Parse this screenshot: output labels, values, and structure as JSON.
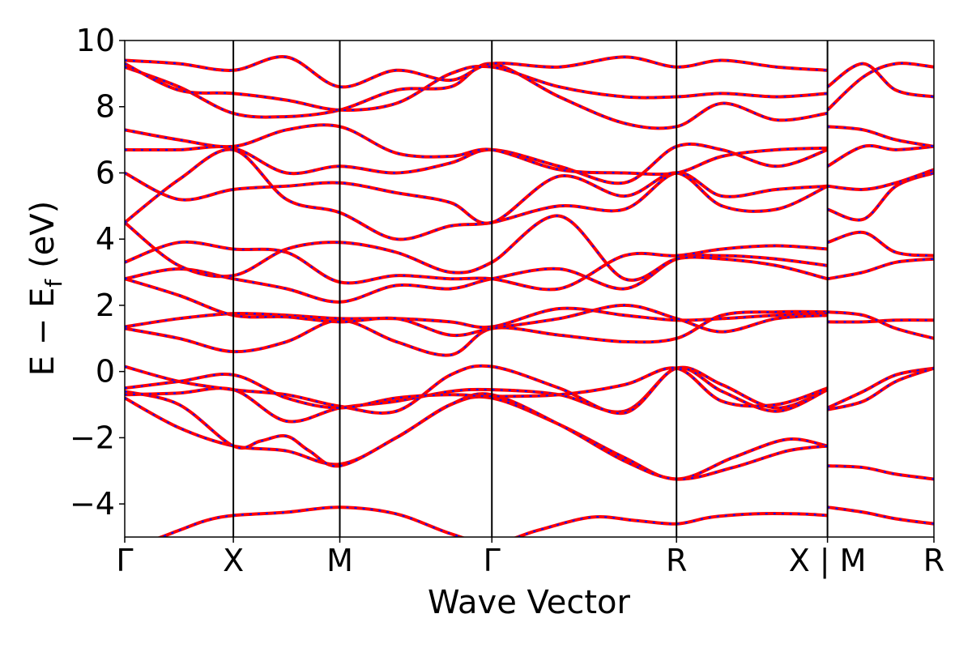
{
  "chart_data": {
    "type": "line",
    "title": "",
    "xlabel": "Wave Vector",
    "ylabel_main": "E − E",
    "ylabel_sub": "f",
    "ylabel_unit": "(eV)",
    "ylim": [
      -5,
      10
    ],
    "yticks": [
      -4,
      -2,
      0,
      2,
      4,
      6,
      8,
      10
    ],
    "ytick_labels": [
      "−4",
      "−2",
      "0",
      "2",
      "4",
      "6",
      "8",
      "10"
    ],
    "x_range": [
      0,
      7.45
    ],
    "kpoints": [
      {
        "label": "Γ",
        "x": 0.0
      },
      {
        "label": "X",
        "x": 1.0
      },
      {
        "label": "M",
        "x": 1.98
      },
      {
        "label": "Γ",
        "x": 3.38
      },
      {
        "label": "R",
        "x": 5.08
      },
      {
        "label": "X | M",
        "x": 6.47
      },
      {
        "label": "R",
        "x": 7.45
      }
    ],
    "grid": false,
    "legend": "none",
    "colors": {
      "band": "#ff0000",
      "overlay": "#1010ff",
      "vline": "#000000"
    },
    "bands": [
      {
        "x": [
          0,
          0.25,
          0.5,
          0.75,
          1.0,
          1.49,
          1.98,
          2.5,
          3.0,
          3.38,
          3.8,
          4.3,
          4.7,
          5.08,
          5.4,
          5.8,
          6.2,
          6.47
        ],
        "y": [
          -5.3,
          -5.1,
          -4.8,
          -4.5,
          -4.35,
          -4.25,
          -4.1,
          -4.3,
          -4.9,
          -5.2,
          -4.8,
          -4.4,
          -4.5,
          -4.6,
          -4.4,
          -4.3,
          -4.3,
          -4.35
        ]
      },
      {
        "x": [
          6.47,
          6.8,
          7.1,
          7.45
        ],
        "y": [
          -4.1,
          -4.25,
          -4.45,
          -4.6
        ]
      },
      {
        "x": [
          0,
          0.5,
          1.0,
          1.49,
          1.98,
          2.5,
          3.0,
          3.38,
          4.0,
          4.6,
          5.08,
          5.6,
          6.1,
          6.47
        ],
        "y": [
          -0.8,
          -1.7,
          -2.25,
          -2.4,
          -2.8,
          -2.0,
          -1.0,
          -0.8,
          -1.6,
          -2.6,
          -3.25,
          -2.6,
          -2.05,
          -2.25
        ]
      },
      {
        "x": [
          0,
          0.5,
          1.0,
          1.25,
          1.49,
          1.7,
          1.98,
          2.5,
          3.0,
          3.38,
          4.0,
          4.6,
          5.08,
          5.6,
          6.1,
          6.47
        ],
        "y": [
          -0.6,
          -1.0,
          -2.25,
          -2.1,
          -1.95,
          -2.4,
          -2.85,
          -2.0,
          -1.0,
          -0.7,
          -1.6,
          -2.7,
          -3.25,
          -2.9,
          -2.4,
          -2.25
        ]
      },
      {
        "x": [
          6.47,
          6.8,
          7.1,
          7.45
        ],
        "y": [
          -2.85,
          -2.9,
          -3.1,
          -3.25
        ]
      },
      {
        "x": [
          0,
          0.5,
          1.0,
          1.49,
          1.98,
          2.5,
          3.0,
          3.38,
          4.0,
          4.6,
          5.08,
          5.5,
          6.0,
          6.47
        ],
        "y": [
          -0.7,
          -0.65,
          -0.55,
          -1.5,
          -1.1,
          -0.9,
          -0.6,
          -0.55,
          -0.7,
          -1.2,
          0.1,
          -0.4,
          -1.1,
          -0.55
        ]
      },
      {
        "x": [
          0,
          0.5,
          1.0,
          1.49,
          1.98,
          2.5,
          3.0,
          3.38,
          4.0,
          4.6,
          5.08,
          5.5,
          6.0,
          6.47
        ],
        "y": [
          0.15,
          -0.3,
          -0.55,
          -0.7,
          -1.05,
          -1.2,
          -0.1,
          0.15,
          -0.5,
          -1.25,
          0.1,
          -0.6,
          -1.2,
          -0.55
        ]
      },
      {
        "x": [
          0,
          0.5,
          1.0,
          1.49,
          1.98,
          2.5,
          3.0,
          3.38,
          4.0,
          4.6,
          5.08,
          5.5,
          6.0,
          6.47
        ],
        "y": [
          -0.5,
          -0.3,
          -0.1,
          -0.8,
          -1.1,
          -0.8,
          -0.7,
          -0.75,
          -0.7,
          -0.4,
          0.1,
          -0.9,
          -1.0,
          -0.5
        ]
      },
      {
        "x": [
          6.47,
          6.8,
          7.1,
          7.45
        ],
        "y": [
          -1.1,
          -0.6,
          -0.1,
          0.1
        ]
      },
      {
        "x": [
          6.47,
          6.8,
          7.1,
          7.45
        ],
        "y": [
          -1.15,
          -0.9,
          -0.3,
          0.1
        ]
      },
      {
        "x": [
          0,
          0.5,
          1.0,
          1.49,
          1.98,
          2.5,
          3.0,
          3.38,
          4.0,
          4.6,
          5.08,
          5.5,
          6.0,
          6.47
        ],
        "y": [
          1.3,
          1.0,
          0.6,
          0.9,
          1.55,
          0.9,
          0.5,
          1.3,
          1.1,
          0.9,
          1.0,
          1.7,
          1.8,
          1.8
        ]
      },
      {
        "x": [
          0,
          0.5,
          1.0,
          1.49,
          1.98,
          2.5,
          3.0,
          3.38,
          4.0,
          4.6,
          5.08,
          5.5,
          6.0,
          6.47
        ],
        "y": [
          1.35,
          1.6,
          1.75,
          1.7,
          1.6,
          1.6,
          1.5,
          1.35,
          1.9,
          1.7,
          1.55,
          1.6,
          1.7,
          1.75
        ]
      },
      {
        "x": [
          0,
          0.5,
          1.0,
          1.49,
          1.98,
          2.5,
          3.0,
          3.38,
          4.0,
          4.6,
          5.08,
          5.5,
          6.0,
          6.47
        ],
        "y": [
          2.8,
          2.3,
          1.7,
          1.65,
          1.5,
          1.6,
          1.1,
          1.3,
          1.6,
          2.0,
          1.6,
          1.2,
          1.6,
          1.7
        ]
      },
      {
        "x": [
          6.47,
          6.8,
          7.1,
          7.45
        ],
        "y": [
          1.5,
          1.5,
          1.55,
          1.55
        ]
      },
      {
        "x": [
          6.47,
          6.8,
          7.1,
          7.45
        ],
        "y": [
          1.8,
          1.7,
          1.3,
          1.0
        ]
      },
      {
        "x": [
          0,
          0.5,
          1.0,
          1.49,
          1.98,
          2.5,
          3.0,
          3.38,
          4.0,
          4.6,
          5.08,
          5.5,
          6.0,
          6.47
        ],
        "y": [
          2.8,
          3.1,
          2.8,
          2.5,
          2.1,
          2.6,
          2.5,
          2.8,
          3.1,
          2.5,
          3.4,
          3.5,
          3.4,
          3.2
        ]
      },
      {
        "x": [
          0,
          0.5,
          1.0,
          1.49,
          1.98,
          2.5,
          3.0,
          3.38,
          4.0,
          4.6,
          5.08,
          5.5,
          6.0,
          6.47
        ],
        "y": [
          3.3,
          3.9,
          3.7,
          3.6,
          2.7,
          2.9,
          2.8,
          2.8,
          2.5,
          3.5,
          3.5,
          3.7,
          3.8,
          3.7
        ]
      },
      {
        "x": [
          0,
          0.5,
          1.0,
          1.49,
          1.98,
          2.5,
          3.0,
          3.38,
          4.0,
          4.6,
          5.08,
          5.5,
          6.0,
          6.47
        ],
        "y": [
          4.5,
          3.2,
          2.9,
          3.7,
          3.9,
          3.6,
          3.0,
          3.3,
          4.7,
          2.8,
          3.4,
          3.4,
          3.2,
          2.8
        ]
      },
      {
        "x": [
          6.47,
          6.8,
          7.1,
          7.45
        ],
        "y": [
          2.8,
          3.0,
          3.3,
          3.4
        ]
      },
      {
        "x": [
          6.47,
          6.8,
          7.1,
          7.45
        ],
        "y": [
          3.9,
          4.2,
          3.6,
          3.5
        ]
      },
      {
        "x": [
          0,
          0.5,
          1.0,
          1.49,
          1.98,
          2.5,
          3.0,
          3.38,
          4.0,
          4.6,
          5.08,
          5.5,
          6.0,
          6.47
        ],
        "y": [
          4.5,
          5.8,
          6.7,
          5.2,
          4.8,
          4.0,
          4.4,
          4.5,
          5.0,
          4.9,
          6.0,
          5.3,
          5.5,
          5.6
        ]
      },
      {
        "x": [
          0,
          0.5,
          1.0,
          1.49,
          1.98,
          2.5,
          3.0,
          3.38,
          4.0,
          4.6,
          5.08,
          5.5,
          6.0,
          6.47
        ],
        "y": [
          6.0,
          5.2,
          5.5,
          5.6,
          5.7,
          5.4,
          5.1,
          4.5,
          5.9,
          5.3,
          6.0,
          5.0,
          4.9,
          5.6
        ]
      },
      {
        "x": [
          0,
          0.5,
          1.0,
          1.49,
          1.98,
          2.5,
          3.0,
          3.38,
          4.0,
          4.6,
          5.08,
          5.5,
          6.0,
          6.47
        ],
        "y": [
          6.7,
          6.7,
          6.75,
          6.0,
          6.2,
          6.0,
          6.3,
          6.7,
          6.2,
          5.7,
          6.8,
          6.7,
          6.2,
          6.7
        ]
      },
      {
        "x": [
          0,
          0.5,
          1.0,
          1.49,
          1.98,
          2.5,
          3.0,
          3.38,
          4.0,
          4.6,
          5.08,
          5.5,
          6.0,
          6.47
        ],
        "y": [
          7.3,
          7.0,
          6.8,
          7.3,
          7.4,
          6.6,
          6.5,
          6.7,
          6.1,
          6.0,
          6.0,
          6.5,
          6.7,
          6.75
        ]
      },
      {
        "x": [
          6.47,
          6.8,
          7.1,
          7.45
        ],
        "y": [
          4.9,
          4.6,
          5.6,
          6.0
        ]
      },
      {
        "x": [
          6.47,
          6.8,
          7.1,
          7.45
        ],
        "y": [
          5.6,
          5.5,
          5.7,
          6.1
        ]
      },
      {
        "x": [
          6.47,
          6.8,
          7.1,
          7.45
        ],
        "y": [
          6.2,
          6.8,
          6.7,
          6.8
        ]
      },
      {
        "x": [
          6.47,
          6.8,
          7.1,
          7.45
        ],
        "y": [
          7.4,
          7.3,
          7.0,
          6.8
        ]
      },
      {
        "x": [
          0,
          0.5,
          1.0,
          1.49,
          1.98,
          2.5,
          3.0,
          3.38,
          4.0,
          4.6,
          5.08,
          5.5,
          6.0,
          6.47
        ],
        "y": [
          9.2,
          8.6,
          7.8,
          7.7,
          7.9,
          8.5,
          8.6,
          9.3,
          8.3,
          7.5,
          7.4,
          8.1,
          7.6,
          7.8
        ]
      },
      {
        "x": [
          0,
          0.5,
          1.0,
          1.49,
          1.98,
          2.5,
          3.0,
          3.38,
          4.0,
          4.6,
          5.08,
          5.5,
          6.0,
          6.47
        ],
        "y": [
          9.3,
          8.5,
          8.4,
          8.2,
          7.9,
          8.1,
          9.0,
          9.2,
          8.6,
          8.3,
          8.3,
          8.4,
          8.3,
          8.4
        ]
      },
      {
        "x": [
          0,
          0.5,
          1.0,
          1.49,
          1.98,
          2.5,
          3.0,
          3.38,
          4.0,
          4.6,
          5.08,
          5.5,
          6.0,
          6.47
        ],
        "y": [
          9.4,
          9.3,
          9.1,
          9.5,
          8.6,
          9.1,
          8.8,
          9.3,
          9.2,
          9.5,
          9.2,
          9.4,
          9.2,
          9.1
        ]
      },
      {
        "x": [
          6.47,
          6.8,
          7.1,
          7.45
        ],
        "y": [
          7.9,
          8.9,
          9.3,
          9.2
        ]
      },
      {
        "x": [
          6.47,
          6.8,
          7.1,
          7.45
        ],
        "y": [
          8.6,
          9.3,
          8.5,
          8.3
        ]
      }
    ]
  }
}
